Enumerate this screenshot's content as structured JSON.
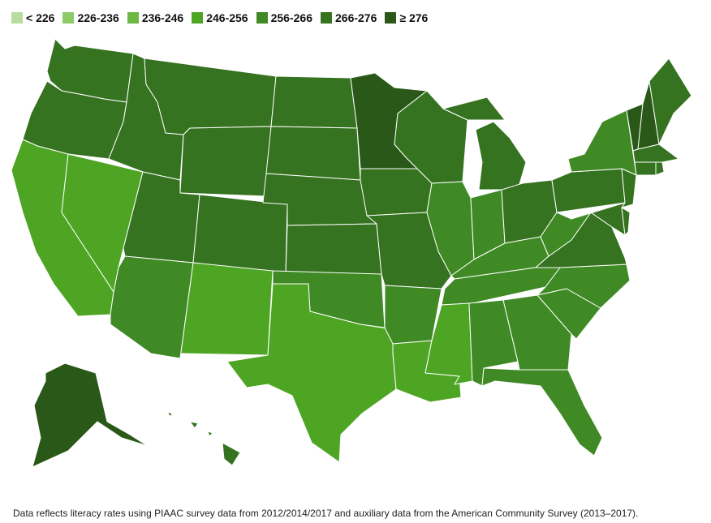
{
  "legend": [
    {
      "label": "< 226",
      "color": "#b7dd9e"
    },
    {
      "label": "226-236",
      "color": "#8cca6a"
    },
    {
      "label": "236-246",
      "color": "#6bb843"
    },
    {
      "label": "246-256",
      "color": "#4ea524"
    },
    {
      "label": "256-266",
      "color": "#3f8a24"
    },
    {
      "label": "266-276",
      "color": "#357320"
    },
    {
      "label": "≥ 276",
      "color": "#2a5818"
    }
  ],
  "footnote": "Data reflects literacy rates using PIAAC survey data from 2012/2014/2017 and auxiliary data from the American Community Survey (2013–2017).",
  "states": [
    {
      "name": "Washington",
      "bin": "266-276"
    },
    {
      "name": "Oregon",
      "bin": "266-276"
    },
    {
      "name": "California",
      "bin": "246-256"
    },
    {
      "name": "Nevada",
      "bin": "246-256"
    },
    {
      "name": "Idaho",
      "bin": "266-276"
    },
    {
      "name": "Montana",
      "bin": "266-276"
    },
    {
      "name": "Wyoming",
      "bin": "266-276"
    },
    {
      "name": "Utah",
      "bin": "266-276"
    },
    {
      "name": "Arizona",
      "bin": "256-266"
    },
    {
      "name": "Colorado",
      "bin": "266-276"
    },
    {
      "name": "New Mexico",
      "bin": "246-256"
    },
    {
      "name": "North Dakota",
      "bin": "266-276"
    },
    {
      "name": "South Dakota",
      "bin": "266-276"
    },
    {
      "name": "Nebraska",
      "bin": "266-276"
    },
    {
      "name": "Kansas",
      "bin": "266-276"
    },
    {
      "name": "Oklahoma",
      "bin": "256-266"
    },
    {
      "name": "Texas",
      "bin": "246-256"
    },
    {
      "name": "Minnesota",
      "bin": "≥ 276"
    },
    {
      "name": "Iowa",
      "bin": "266-276"
    },
    {
      "name": "Missouri",
      "bin": "266-276"
    },
    {
      "name": "Arkansas",
      "bin": "256-266"
    },
    {
      "name": "Louisiana",
      "bin": "246-256"
    },
    {
      "name": "Wisconsin",
      "bin": "266-276"
    },
    {
      "name": "Illinois",
      "bin": "256-266"
    },
    {
      "name": "Michigan",
      "bin": "266-276"
    },
    {
      "name": "Indiana",
      "bin": "256-266"
    },
    {
      "name": "Ohio",
      "bin": "266-276"
    },
    {
      "name": "Kentucky",
      "bin": "256-266"
    },
    {
      "name": "Tennessee",
      "bin": "256-266"
    },
    {
      "name": "Mississippi",
      "bin": "246-256"
    },
    {
      "name": "Alabama",
      "bin": "256-266"
    },
    {
      "name": "Georgia",
      "bin": "256-266"
    },
    {
      "name": "Florida",
      "bin": "256-266"
    },
    {
      "name": "South Carolina",
      "bin": "256-266"
    },
    {
      "name": "North Carolina",
      "bin": "256-266"
    },
    {
      "name": "Virginia",
      "bin": "266-276"
    },
    {
      "name": "West Virginia",
      "bin": "256-266"
    },
    {
      "name": "Pennsylvania",
      "bin": "266-276"
    },
    {
      "name": "New York",
      "bin": "256-266"
    },
    {
      "name": "New Jersey",
      "bin": "266-276"
    },
    {
      "name": "Maryland",
      "bin": "266-276"
    },
    {
      "name": "Delaware",
      "bin": "266-276"
    },
    {
      "name": "Vermont",
      "bin": "≥ 276"
    },
    {
      "name": "New Hampshire",
      "bin": "≥ 276"
    },
    {
      "name": "Maine",
      "bin": "266-276"
    },
    {
      "name": "Massachusetts",
      "bin": "266-276"
    },
    {
      "name": "Connecticut",
      "bin": "266-276"
    },
    {
      "name": "Rhode Island",
      "bin": "266-276"
    },
    {
      "name": "Alaska",
      "bin": "≥ 276"
    },
    {
      "name": "Hawaii",
      "bin": "266-276"
    }
  ]
}
